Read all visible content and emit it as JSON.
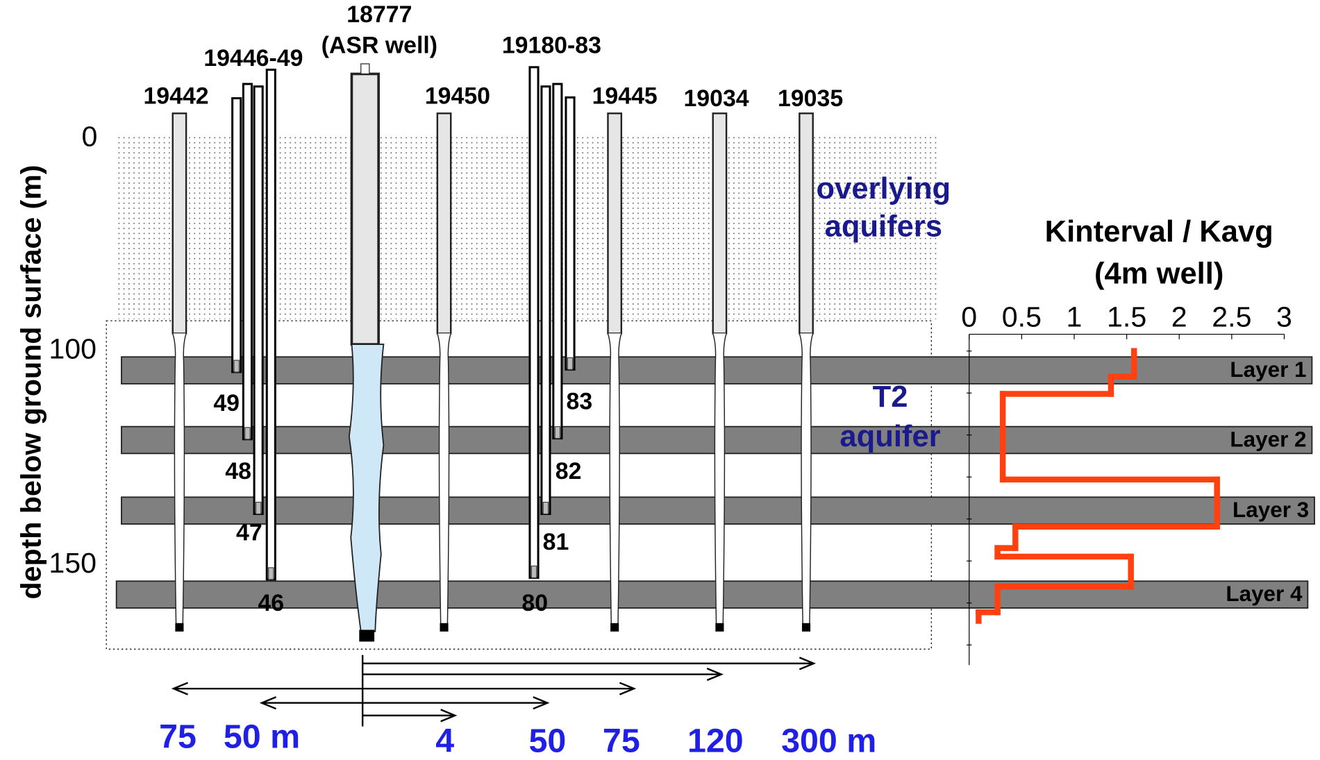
{
  "depth_axis": {
    "label": "depth below ground surface (m)",
    "ticks": [
      0,
      100,
      150
    ]
  },
  "wells": [
    "19442",
    "19446-49",
    "18777",
    "(ASR well)",
    "19450",
    "19180-83",
    "19445",
    "19034",
    "19035"
  ],
  "piezometers": [
    "49",
    "48",
    "47",
    "46",
    "83",
    "82",
    "81",
    "80"
  ],
  "annotations": [
    "overlying",
    "aquifers",
    "T2",
    "aquifer"
  ],
  "layers": [
    "Layer 1",
    "Layer 2",
    "Layer 3",
    "Layer 4"
  ],
  "distances": [
    "75",
    "50 m",
    "4",
    "50",
    "75",
    "120",
    "300 m"
  ],
  "profile": {
    "title": "Kinterval / Kavg",
    "subtitle": "(4m well)",
    "xlim": [
      0,
      3
    ],
    "xticks": [
      0,
      0.5,
      1,
      1.5,
      2,
      2.5,
      3
    ],
    "color": "#ff4010",
    "depth_edges": [
      100,
      106,
      110,
      130,
      141,
      146,
      148,
      155,
      161,
      163
    ],
    "k": [
      1.57,
      1.35,
      0.32,
      2.36,
      0.44,
      0.27,
      1.54,
      0.27,
      0.09
    ]
  }
}
